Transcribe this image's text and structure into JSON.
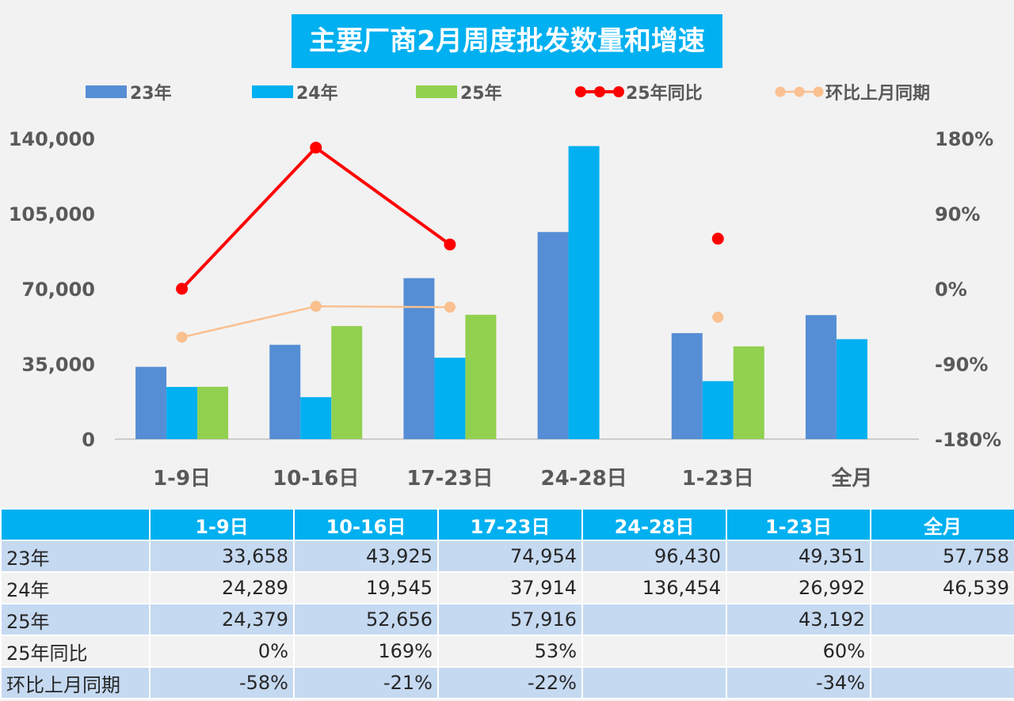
{
  "chart_data": {
    "type": "bar",
    "title": "主要厂商2月周度批发数量和增速",
    "categories": [
      "1-9日",
      "10-16日",
      "17-23日",
      "24-28日",
      "1-23日",
      "全月"
    ],
    "series": [
      {
        "name": "23年",
        "kind": "bar",
        "axis": "left",
        "color": "#558ed5",
        "values": [
          33658,
          43925,
          74954,
          96430,
          49351,
          57758
        ]
      },
      {
        "name": "24年",
        "kind": "bar",
        "axis": "left",
        "color": "#00b0f0",
        "values": [
          24289,
          19545,
          37914,
          136454,
          26992,
          46539
        ]
      },
      {
        "name": "25年",
        "kind": "bar",
        "axis": "left",
        "color": "#92d050",
        "values": [
          24379,
          52656,
          57916,
          null,
          43192,
          null
        ]
      },
      {
        "name": "25年同比",
        "kind": "line",
        "axis": "right",
        "color": "#ff0000",
        "values": [
          0,
          169,
          53,
          null,
          60,
          null
        ]
      },
      {
        "name": "环比上月同期",
        "kind": "line",
        "axis": "right",
        "color": "#fac090",
        "values": [
          -58,
          -21,
          -22,
          null,
          -34,
          null
        ]
      }
    ],
    "yleft": {
      "min": 0,
      "max": 140000,
      "ticks": [
        0,
        35000,
        70000,
        105000,
        140000
      ],
      "tick_labels": [
        "0",
        "35,000",
        "70,000",
        "105,000",
        "140,000"
      ]
    },
    "yright": {
      "min": -180,
      "max": 180,
      "ticks": [
        -180,
        -90,
        0,
        90,
        180
      ],
      "tick_labels": [
        "-180%",
        "-90%",
        "0%",
        "90%",
        "180%"
      ]
    },
    "legend_position": "top"
  },
  "table": {
    "header": [
      "",
      "1-9日",
      "10-16日",
      "17-23日",
      "24-28日",
      "1-23日",
      "全月"
    ],
    "rows": [
      {
        "label": "23年",
        "cells": [
          "33,658",
          "43,925",
          "74,954",
          "96,430",
          "49,351",
          "57,758"
        ]
      },
      {
        "label": "24年",
        "cells": [
          "24,289",
          "19,545",
          "37,914",
          "136,454",
          "26,992",
          "46,539"
        ]
      },
      {
        "label": "25年",
        "cells": [
          "24,379",
          "52,656",
          "57,916",
          "",
          "43,192",
          ""
        ]
      },
      {
        "label": "25年同比",
        "cells": [
          "0%",
          "169%",
          "53%",
          "",
          "60%",
          ""
        ]
      },
      {
        "label": "环比上月同期",
        "cells": [
          "-58%",
          "-21%",
          "-22%",
          "",
          "-34%",
          ""
        ]
      }
    ]
  }
}
